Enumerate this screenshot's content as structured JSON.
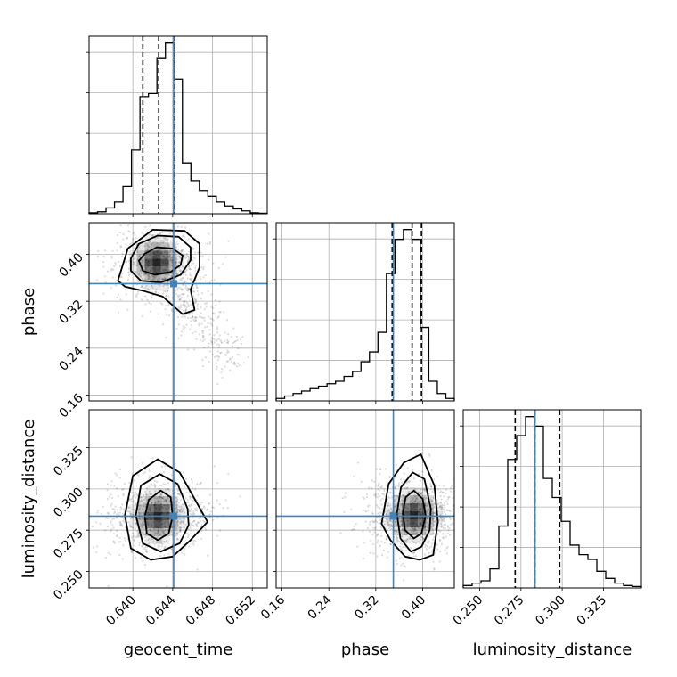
{
  "chart_data": {
    "type": "corner",
    "parameters": [
      "geocent_time",
      "phase",
      "luminosity_distance"
    ],
    "truths": [
      0.6441,
      0.35,
      0.2835
    ],
    "truth_color": "#4682b4",
    "ranges": [
      [
        0.6356,
        0.6535
      ],
      [
        0.15,
        0.454
      ],
      [
        0.24,
        0.348
      ]
    ],
    "ticks": [
      [
        0.64,
        0.644,
        0.648,
        0.652
      ],
      [
        0.16,
        0.24,
        0.32,
        0.4
      ],
      [
        0.25,
        0.275,
        0.3,
        0.325
      ]
    ],
    "tick_labels": [
      [
        "0.640",
        "0.644",
        "0.648",
        "0.652"
      ],
      [
        "0.16",
        "0.24",
        "0.32",
        "0.40"
      ],
      [
        "0.250",
        "0.275",
        "0.300",
        "0.325"
      ]
    ],
    "quantiles": [
      [
        0.641,
        0.6426,
        0.6442
      ],
      [
        0.348,
        0.382,
        0.398
      ],
      [
        0.2715,
        0.2835,
        0.2985
      ]
    ],
    "histograms": [
      [
        0.5,
        1,
        3,
        6,
        14,
        33,
        60,
        62,
        80,
        88,
        69,
        26,
        17,
        12,
        9,
        6,
        4,
        2.5,
        1.5,
        0.5,
        0.3
      ],
      [
        0.5,
        1,
        1.5,
        2,
        2.5,
        3,
        3.5,
        4,
        5,
        6,
        8,
        10,
        14,
        26,
        33,
        35,
        33,
        15,
        4,
        1.5,
        0.5
      ],
      [
        0.5,
        1,
        1.5,
        4,
        13,
        27,
        32,
        36,
        34,
        23,
        19,
        14,
        9,
        7,
        6,
        3.5,
        2,
        1,
        0.5,
        0.3
      ]
    ],
    "density_2d": [
      {
        "x": "geocent_time",
        "y": "phase",
        "mode": [
          0.6424,
          0.386
        ],
        "contours": [
          [
            [
              0.6406,
              0.389
            ],
            [
              0.6412,
              0.401
            ],
            [
              0.6424,
              0.412
            ],
            [
              0.644,
              0.41
            ],
            [
              0.645,
              0.398
            ],
            [
              0.6448,
              0.382
            ],
            [
              0.6438,
              0.37
            ],
            [
              0.6422,
              0.365
            ],
            [
              0.641,
              0.372
            ]
          ],
          [
            [
              0.6398,
              0.393
            ],
            [
              0.6406,
              0.418
            ],
            [
              0.6425,
              0.432
            ],
            [
              0.6446,
              0.43
            ],
            [
              0.6458,
              0.412
            ],
            [
              0.6458,
              0.39
            ],
            [
              0.6448,
              0.365
            ],
            [
              0.6428,
              0.352
            ],
            [
              0.6408,
              0.355
            ],
            [
              0.6398,
              0.372
            ]
          ],
          [
            [
              0.6385,
              0.355
            ],
            [
              0.6395,
              0.41
            ],
            [
              0.642,
              0.442
            ],
            [
              0.6452,
              0.44
            ],
            [
              0.6467,
              0.418
            ],
            [
              0.6467,
              0.378
            ],
            [
              0.6458,
              0.34
            ],
            [
              0.6462,
              0.305
            ],
            [
              0.645,
              0.298
            ],
            [
              0.643,
              0.328
            ],
            [
              0.641,
              0.338
            ],
            [
              0.6392,
              0.345
            ]
          ]
        ]
      },
      {
        "x": "geocent_time",
        "y": "luminosity_distance",
        "mode": [
          0.6425,
          0.2835
        ],
        "contours": [
          [
            [
              0.6412,
              0.2835
            ],
            [
              0.6416,
              0.2935
            ],
            [
              0.6428,
              0.299
            ],
            [
              0.6438,
              0.295
            ],
            [
              0.644,
              0.2835
            ],
            [
              0.6436,
              0.273
            ],
            [
              0.6425,
              0.269
            ],
            [
              0.6414,
              0.273
            ]
          ],
          [
            [
              0.6403,
              0.284
            ],
            [
              0.6408,
              0.302
            ],
            [
              0.6427,
              0.309
            ],
            [
              0.6445,
              0.303
            ],
            [
              0.6455,
              0.288
            ],
            [
              0.6456,
              0.278
            ],
            [
              0.6447,
              0.267
            ],
            [
              0.6428,
              0.262
            ],
            [
              0.641,
              0.267
            ]
          ],
          [
            [
              0.6392,
              0.284
            ],
            [
              0.64,
              0.308
            ],
            [
              0.6425,
              0.318
            ],
            [
              0.6447,
              0.31
            ],
            [
              0.6462,
              0.294
            ],
            [
              0.6475,
              0.28
            ],
            [
              0.6458,
              0.269
            ],
            [
              0.644,
              0.259
            ],
            [
              0.6418,
              0.257
            ],
            [
              0.6398,
              0.264
            ]
          ]
        ]
      },
      {
        "x": "phase",
        "y": "luminosity_distance",
        "mode": [
          0.385,
          0.284
        ],
        "contours": [
          [
            [
              0.366,
              0.285
            ],
            [
              0.371,
              0.295
            ],
            [
              0.385,
              0.299
            ],
            [
              0.4,
              0.294
            ],
            [
              0.405,
              0.284
            ],
            [
              0.398,
              0.273
            ],
            [
              0.385,
              0.27
            ],
            [
              0.37,
              0.275
            ]
          ],
          [
            [
              0.356,
              0.285
            ],
            [
              0.363,
              0.301
            ],
            [
              0.383,
              0.31
            ],
            [
              0.403,
              0.306
            ],
            [
              0.414,
              0.288
            ],
            [
              0.412,
              0.275
            ],
            [
              0.398,
              0.265
            ],
            [
              0.38,
              0.262
            ],
            [
              0.362,
              0.27
            ]
          ],
          [
            [
              0.33,
              0.279
            ],
            [
              0.342,
              0.303
            ],
            [
              0.368,
              0.316
            ],
            [
              0.397,
              0.321
            ],
            [
              0.42,
              0.302
            ],
            [
              0.426,
              0.28
            ],
            [
              0.418,
              0.26
            ],
            [
              0.395,
              0.257
            ],
            [
              0.37,
              0.259
            ],
            [
              0.345,
              0.269
            ]
          ]
        ]
      }
    ]
  }
}
